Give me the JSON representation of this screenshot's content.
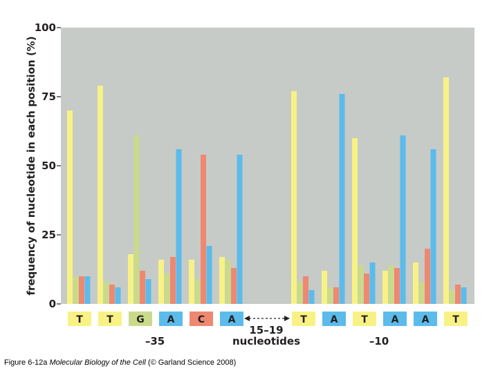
{
  "chart_data": {
    "type": "bar",
    "ylabel": "frequency of nucleotide in each position (%)",
    "ylim": [
      0,
      100
    ],
    "yticks": [
      0,
      25,
      50,
      75,
      100
    ],
    "grid": false,
    "series": [
      {
        "name": "T",
        "color": "#f8f286"
      },
      {
        "name": "G",
        "color": "#c9db8b"
      },
      {
        "name": "C",
        "color": "#ee8870"
      },
      {
        "name": "A",
        "color": "#5cbbea"
      }
    ],
    "positions": [
      {
        "consensus": "T",
        "box_color": "#f8f286",
        "values": [
          70,
          10,
          10,
          10
        ]
      },
      {
        "consensus": "T",
        "box_color": "#f8f286",
        "values": [
          79,
          8,
          7,
          6
        ]
      },
      {
        "consensus": "G",
        "box_color": "#c9db8b",
        "values": [
          18,
          61,
          12,
          9
        ]
      },
      {
        "consensus": "A",
        "box_color": "#5cbbea",
        "values": [
          16,
          11,
          17,
          56
        ]
      },
      {
        "consensus": "C",
        "box_color": "#ee8870",
        "values": [
          16,
          9,
          54,
          21
        ]
      },
      {
        "consensus": "A",
        "box_color": "#5cbbea",
        "values": [
          17,
          16,
          13,
          54
        ]
      },
      {
        "consensus": "T",
        "box_color": "#f8f286",
        "values": [
          77,
          8,
          10,
          5
        ]
      },
      {
        "consensus": "A",
        "box_color": "#5cbbea",
        "values": [
          12,
          6,
          6,
          76
        ]
      },
      {
        "consensus": "T",
        "box_color": "#f8f286",
        "values": [
          60,
          14,
          11,
          15
        ]
      },
      {
        "consensus": "A",
        "box_color": "#5cbbea",
        "values": [
          12,
          14,
          13,
          61
        ]
      },
      {
        "consensus": "A",
        "box_color": "#5cbbea",
        "values": [
          15,
          8,
          20,
          56
        ]
      },
      {
        "consensus": "T",
        "box_color": "#f8f286",
        "values": [
          82,
          5,
          7,
          6
        ]
      }
    ],
    "group_labels": {
      "minus35": "–35",
      "spacer_line1": "15–19",
      "spacer_line2": "nucleotides",
      "minus10": "–10"
    },
    "plot_background": "#c6cbc7"
  },
  "caption": {
    "prefix": "Figure 6-12a  ",
    "title": "Molecular Biology of the Cell",
    "suffix": " (© Garland Science 2008)"
  }
}
